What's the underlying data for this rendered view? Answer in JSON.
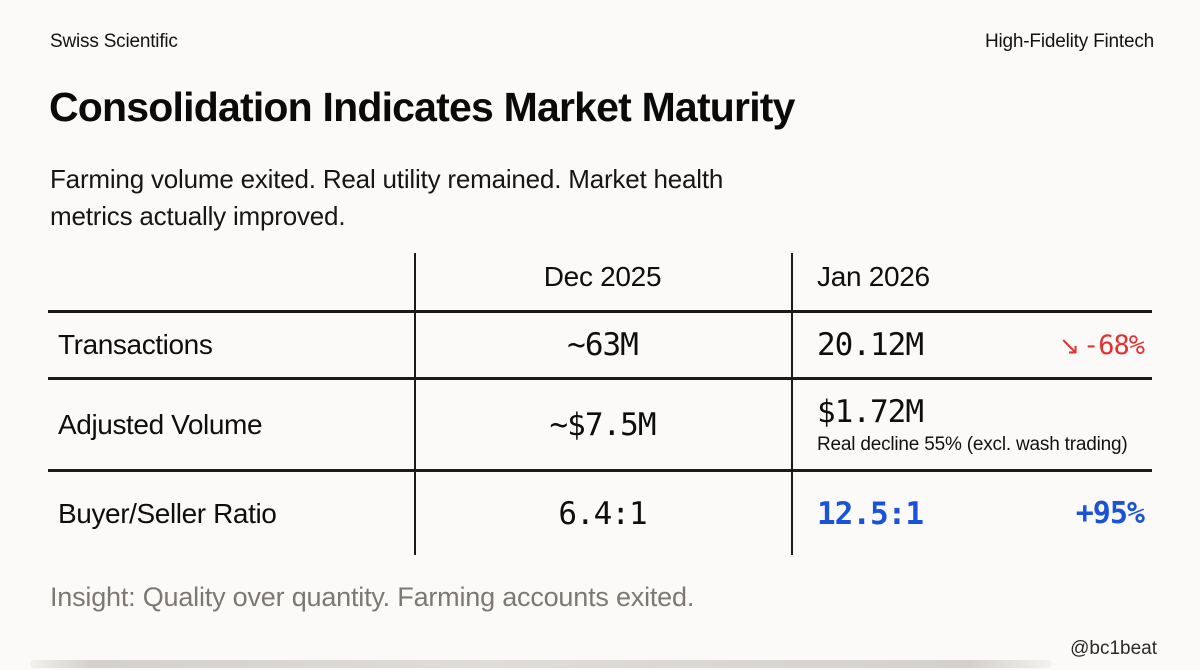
{
  "header": {
    "brand_left": "Swiss Scientific",
    "brand_right": "High-Fidelity Fintech"
  },
  "title": "Consolidation Indicates Market Maturity",
  "subtitle": {
    "lines": [
      "Farming volume exited. Real utility remained. Market health",
      "metrics actually improved."
    ]
  },
  "table": {
    "columns": [
      "",
      "Dec 2025",
      "Jan 2026"
    ],
    "rows": [
      {
        "metric": "Transactions",
        "dec": "~63M",
        "jan": "20.12M",
        "change_arrow": "↘",
        "change": "-68%",
        "change_direction": "down"
      },
      {
        "metric": "Adjusted Volume",
        "dec": "~$7.5M",
        "jan": "$1.72M",
        "note": "Real decline 55% (excl. wash trading)"
      },
      {
        "metric": "Buyer/Seller Ratio",
        "dec": "6.4:1",
        "jan": "12.5:1",
        "change": "+95%",
        "change_direction": "up"
      }
    ]
  },
  "footer": {
    "insight": "Insight: Quality over quantity. Farming accounts exited.",
    "watermark": "@bc1beat"
  },
  "colors": {
    "background": "#fbfaf8",
    "rule_line": "#1b1b1b",
    "negative": "#e03232",
    "positive_highlight": "#1a53d6",
    "muted_text": "#7c7974"
  }
}
